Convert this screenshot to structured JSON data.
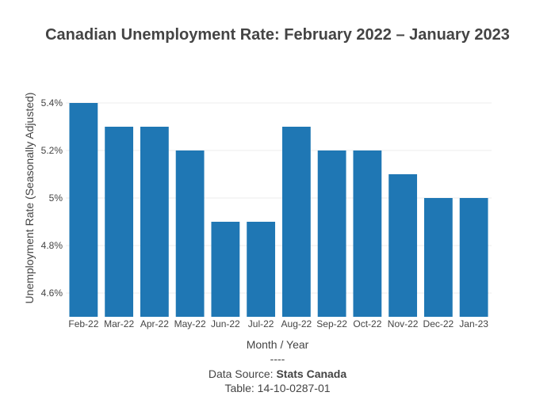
{
  "chart_data": {
    "type": "bar",
    "title": "Canadian Unemployment Rate: February 2022 – January 2023",
    "xlabel": "Month / Year",
    "ylabel": "Unemployment Rate (Seasonally Adjusted)",
    "categories": [
      "Feb-22",
      "Mar-22",
      "Apr-22",
      "May-22",
      "Jun-22",
      "Jul-22",
      "Aug-22",
      "Sep-22",
      "Oct-22",
      "Nov-22",
      "Dec-22",
      "Jan-23"
    ],
    "values": [
      5.4,
      5.3,
      5.3,
      5.2,
      4.9,
      4.9,
      5.3,
      5.2,
      5.2,
      5.1,
      5.0,
      5.0
    ],
    "ylim": [
      4.5,
      5.4
    ],
    "yticks": [
      4.6,
      4.8,
      5.0,
      5.2,
      5.4
    ],
    "ytick_labels": [
      "4.6%",
      "4.8%",
      "5%",
      "5.2%",
      "5.4%"
    ],
    "bar_color": "#1f77b4",
    "grid": true,
    "footer": {
      "separator": "----",
      "source_prefix": "Data Source: ",
      "source_name": "Stats Canada",
      "table": "Table: 14-10-0287-01"
    }
  }
}
